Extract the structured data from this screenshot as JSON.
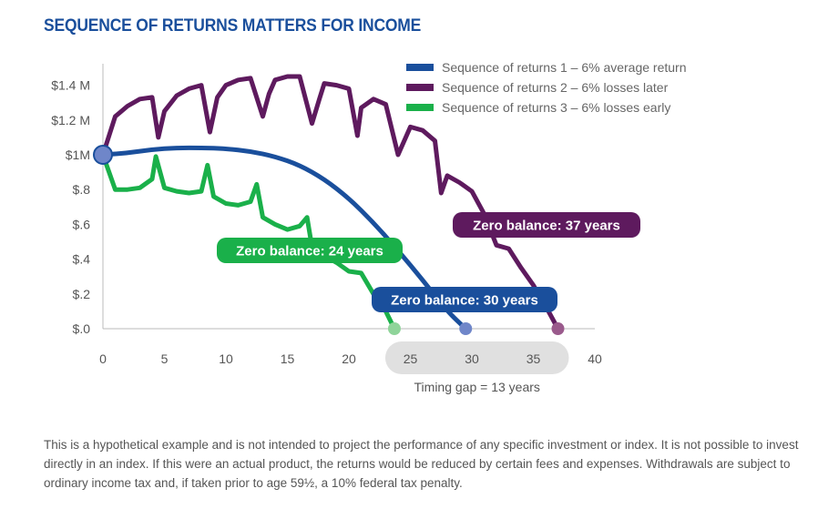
{
  "title": "SEQUENCE OF RETURNS MATTERS FOR INCOME",
  "disclaimer": "This is a hypothetical example and is not intended to project the performance of any specific investment or index. It is not possible to invest directly in an index. If this were an actual product, the returns would be reduced by certain fees and expenses. Withdrawals are subject to ordinary income tax and, if taken prior to age 59½, a 10% federal tax penalty.",
  "chart_data": {
    "type": "line",
    "title": "SEQUENCE OF RETURNS MATTERS FOR INCOME",
    "xlabel": "",
    "ylabel": "",
    "xlim": [
      0,
      40
    ],
    "ylim": [
      0,
      1.5
    ],
    "x_ticks": [
      0,
      5,
      10,
      15,
      20,
      25,
      30,
      35,
      40
    ],
    "x_tick_labels": [
      "0",
      "5",
      "10",
      "15",
      "20",
      "25",
      "30",
      "35",
      "40"
    ],
    "y_ticks": [
      0,
      0.2,
      0.4,
      0.6,
      0.8,
      1.0,
      1.2,
      1.4
    ],
    "y_tick_labels": [
      "$.0",
      "$.2",
      "$.4",
      "$.6",
      "$.8",
      "$1M",
      "$1.2 M",
      "$1.4 M"
    ],
    "grid": false,
    "legend_position": "top-right",
    "series": [
      {
        "name": "Sequence of returns 1 – 6% average return",
        "color": "#1a4f9c",
        "x": [
          0,
          2,
          4,
          6,
          8,
          10,
          12,
          14,
          16,
          18,
          20,
          22,
          24,
          26,
          28,
          29.5
        ],
        "y": [
          1.0,
          1.01,
          1.03,
          1.04,
          1.04,
          1.035,
          1.02,
          0.99,
          0.94,
          0.86,
          0.75,
          0.61,
          0.45,
          0.28,
          0.1,
          0.0
        ]
      },
      {
        "name": "Sequence of returns 2 – 6% losses later",
        "color": "#5e1a5e",
        "x": [
          0,
          1,
          2,
          3,
          4,
          4.5,
          5,
          6,
          7,
          8,
          8.7,
          9.3,
          10,
          11,
          12,
          13,
          13.5,
          14,
          15,
          16,
          17,
          17.6,
          18,
          19,
          20,
          20.7,
          21,
          22,
          23,
          24,
          25,
          26,
          27,
          27.5,
          28,
          29,
          30,
          31,
          32,
          33,
          34,
          35,
          36,
          37
        ],
        "y": [
          1.0,
          1.22,
          1.28,
          1.32,
          1.33,
          1.1,
          1.25,
          1.34,
          1.38,
          1.4,
          1.13,
          1.33,
          1.4,
          1.43,
          1.44,
          1.22,
          1.35,
          1.43,
          1.45,
          1.45,
          1.18,
          1.32,
          1.41,
          1.4,
          1.38,
          1.11,
          1.27,
          1.32,
          1.29,
          1.0,
          1.16,
          1.14,
          1.08,
          0.78,
          0.88,
          0.84,
          0.79,
          0.66,
          0.48,
          0.46,
          0.35,
          0.25,
          0.13,
          0.0
        ]
      },
      {
        "name": "Sequence of returns 3 – 6% losses early",
        "color": "#1ab04a",
        "x": [
          0,
          1,
          2,
          3,
          4,
          4.3,
          5,
          6,
          7,
          8,
          8.5,
          9,
          10,
          11,
          12,
          12.5,
          13,
          14,
          15,
          16,
          16.6,
          17,
          18,
          19,
          20,
          21,
          22,
          23,
          23.7
        ],
        "y": [
          1.0,
          0.8,
          0.8,
          0.81,
          0.86,
          0.99,
          0.81,
          0.79,
          0.78,
          0.79,
          0.94,
          0.76,
          0.72,
          0.71,
          0.73,
          0.83,
          0.64,
          0.6,
          0.57,
          0.59,
          0.64,
          0.47,
          0.42,
          0.38,
          0.33,
          0.32,
          0.2,
          0.1,
          0.0
        ]
      }
    ],
    "annotations": [
      {
        "text": "Zero balance: 24 years",
        "color": "#1ab04a",
        "x": 23.7
      },
      {
        "text": "Zero balance: 30 years",
        "color": "#1a4f9c",
        "x": 29.5
      },
      {
        "text": "Zero balance: 37 years",
        "color": "#5e1a5e",
        "x": 37
      },
      {
        "text": "Timing gap = 13 years",
        "color": "#e0e0e0",
        "x_range": [
          23.7,
          37
        ]
      }
    ]
  }
}
